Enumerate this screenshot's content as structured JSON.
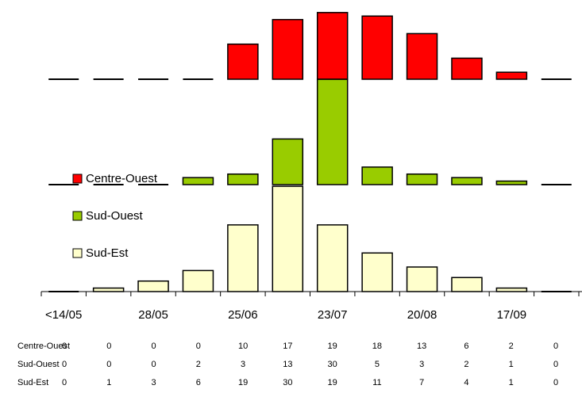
{
  "chart_data": {
    "type": "bar",
    "categories": [
      "<14/05",
      null,
      "28/05",
      null,
      "25/06",
      null,
      "23/07",
      null,
      "20/08",
      null,
      "17/09",
      null
    ],
    "series": [
      {
        "name": "Centre-Ouest",
        "color": "#ff0000",
        "values": [
          0,
          0,
          0,
          0,
          10,
          17,
          19,
          18,
          13,
          6,
          2,
          0
        ]
      },
      {
        "name": "Sud-Ouest",
        "color": "#99cc00",
        "values": [
          0,
          0,
          0,
          2,
          3,
          13,
          30,
          5,
          3,
          2,
          1,
          0
        ]
      },
      {
        "name": "Sud-Est",
        "color": "#ffffcc",
        "values": [
          0,
          1,
          3,
          6,
          19,
          30,
          19,
          11,
          7,
          4,
          1,
          0
        ]
      }
    ]
  }
}
